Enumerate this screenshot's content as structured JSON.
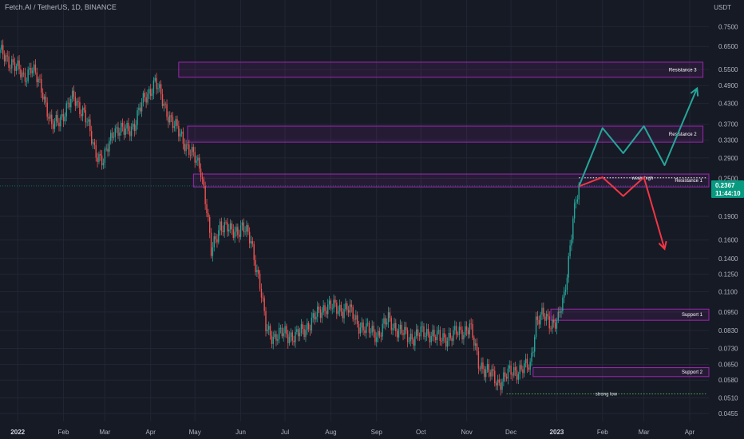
{
  "header": {
    "title": "Fetch.AI / TetherUS, 1D, BINANCE",
    "unit": "USDT"
  },
  "colors": {
    "background": "#161a25",
    "grid": "#222634",
    "up": "#26a69a",
    "down": "#ef5350",
    "zone": "#9c27b0",
    "bull_path": "#26a69a",
    "bear_path": "#f23645",
    "price_badge": "#089981"
  },
  "chart_data": {
    "type": "candlestick",
    "y_scale": "log",
    "ylim": [
      0.043,
      0.82
    ],
    "xlim": [
      "2021-12-20",
      "2023-04-14"
    ],
    "y_ticks": [
      "0.7500",
      "0.6500",
      "0.5500",
      "0.4900",
      "0.4300",
      "0.3700",
      "0.3300",
      "0.2900",
      "0.2500",
      "0.1900",
      "0.1600",
      "0.1400",
      "0.1250",
      "0.1100",
      "0.0950",
      "0.0830",
      "0.0730",
      "0.0650",
      "0.0580",
      "0.0510",
      "0.0455"
    ],
    "x_ticks": [
      {
        "date": "2022-01-01",
        "label": "2022",
        "year": true
      },
      {
        "date": "2022-02-01",
        "label": "Feb"
      },
      {
        "date": "2022-03-01",
        "label": "Mar"
      },
      {
        "date": "2022-04-01",
        "label": "Apr"
      },
      {
        "date": "2022-05-01",
        "label": "May"
      },
      {
        "date": "2022-06-01",
        "label": "Jun"
      },
      {
        "date": "2022-07-01",
        "label": "Jul"
      },
      {
        "date": "2022-08-01",
        "label": "Aug"
      },
      {
        "date": "2022-09-01",
        "label": "Sep"
      },
      {
        "date": "2022-10-01",
        "label": "Oct"
      },
      {
        "date": "2022-11-01",
        "label": "Nov"
      },
      {
        "date": "2022-12-01",
        "label": "Dec"
      },
      {
        "date": "2023-01-01",
        "label": "2023",
        "year": true
      },
      {
        "date": "2023-02-01",
        "label": "Feb"
      },
      {
        "date": "2023-03-01",
        "label": "Mar"
      },
      {
        "date": "2023-04-01",
        "label": "Apr"
      }
    ],
    "price_path": [
      [
        "2021-12-20",
        0.62
      ],
      [
        "2021-12-28",
        0.58
      ],
      [
        "2022-01-05",
        0.52
      ],
      [
        "2022-01-10",
        0.56
      ],
      [
        "2022-01-18",
        0.47
      ],
      [
        "2022-01-24",
        0.36
      ],
      [
        "2022-02-01",
        0.4
      ],
      [
        "2022-02-08",
        0.45
      ],
      [
        "2022-02-15",
        0.4
      ],
      [
        "2022-02-22",
        0.31
      ],
      [
        "2022-02-28",
        0.28
      ],
      [
        "2022-03-07",
        0.36
      ],
      [
        "2022-03-14",
        0.35
      ],
      [
        "2022-03-21",
        0.37
      ],
      [
        "2022-03-28",
        0.45
      ],
      [
        "2022-04-04",
        0.5
      ],
      [
        "2022-04-10",
        0.43
      ],
      [
        "2022-04-16",
        0.37
      ],
      [
        "2022-04-22",
        0.34
      ],
      [
        "2022-04-28",
        0.3
      ],
      [
        "2022-05-05",
        0.27
      ],
      [
        "2022-05-09",
        0.2
      ],
      [
        "2022-05-12",
        0.145
      ],
      [
        "2022-05-18",
        0.18
      ],
      [
        "2022-05-25",
        0.17
      ],
      [
        "2022-06-02",
        0.175
      ],
      [
        "2022-06-08",
        0.16
      ],
      [
        "2022-06-14",
        0.115
      ],
      [
        "2022-06-18",
        0.085
      ],
      [
        "2022-06-24",
        0.079
      ],
      [
        "2022-07-01",
        0.082
      ],
      [
        "2022-07-08",
        0.079
      ],
      [
        "2022-07-15",
        0.085
      ],
      [
        "2022-07-22",
        0.092
      ],
      [
        "2022-07-29",
        0.1
      ],
      [
        "2022-08-05",
        0.097
      ],
      [
        "2022-08-12",
        0.098
      ],
      [
        "2022-08-19",
        0.088
      ],
      [
        "2022-08-26",
        0.083
      ],
      [
        "2022-09-02",
        0.081
      ],
      [
        "2022-09-09",
        0.09
      ],
      [
        "2022-09-16",
        0.083
      ],
      [
        "2022-09-23",
        0.079
      ],
      [
        "2022-09-30",
        0.081
      ],
      [
        "2022-10-07",
        0.082
      ],
      [
        "2022-10-14",
        0.078
      ],
      [
        "2022-10-21",
        0.08
      ],
      [
        "2022-10-28",
        0.082
      ],
      [
        "2022-11-03",
        0.086
      ],
      [
        "2022-11-09",
        0.066
      ],
      [
        "2022-11-15",
        0.062
      ],
      [
        "2022-11-22",
        0.057
      ],
      [
        "2022-11-28",
        0.06
      ],
      [
        "2022-12-03",
        0.062
      ],
      [
        "2022-12-08",
        0.063
      ],
      [
        "2022-12-14",
        0.064
      ],
      [
        "2022-12-18",
        0.09
      ],
      [
        "2022-12-22",
        0.092
      ],
      [
        "2022-12-28",
        0.088
      ],
      [
        "2023-01-02",
        0.09
      ],
      [
        "2023-01-06",
        0.105
      ],
      [
        "2023-01-09",
        0.14
      ],
      [
        "2023-01-12",
        0.19
      ],
      [
        "2023-01-16",
        0.23
      ]
    ],
    "current_price": "0.2367",
    "countdown": "11:44:10",
    "zones": [
      {
        "label": "Resistance 3",
        "from": "2022-04-20",
        "to": "2023-04-10",
        "low": 0.52,
        "high": 0.58
      },
      {
        "label": "Resistance 2",
        "from": "2022-04-26",
        "to": "2023-04-10",
        "low": 0.325,
        "high": 0.365
      },
      {
        "label": "Resistance 1",
        "from": "2022-04-30",
        "to": "2023-04-14",
        "low": 0.235,
        "high": 0.258
      },
      {
        "label": "Support 1",
        "from": "2022-12-28",
        "to": "2023-04-14",
        "low": 0.0895,
        "high": 0.097
      },
      {
        "label": "Support 2",
        "from": "2022-12-16",
        "to": "2023-04-14",
        "low": 0.0595,
        "high": 0.0635
      }
    ],
    "lines": [
      {
        "label": "weak high",
        "from": "2023-01-16",
        "to": "2023-04-12",
        "y": 0.251,
        "color": "#ffffff"
      },
      {
        "label": "strong low",
        "from": "2022-11-28",
        "to": "2023-04-12",
        "y": 0.0525,
        "color": "#4caf50"
      }
    ],
    "bull_path": [
      [
        "2023-01-16",
        0.236
      ],
      [
        "2023-02-01",
        0.36
      ],
      [
        "2023-02-15",
        0.3
      ],
      [
        "2023-03-01",
        0.365
      ],
      [
        "2023-03-15",
        0.275
      ],
      [
        "2023-04-06",
        0.48
      ]
    ],
    "bear_path": [
      [
        "2023-01-16",
        0.236
      ],
      [
        "2023-02-01",
        0.252
      ],
      [
        "2023-02-15",
        0.22
      ],
      [
        "2023-03-01",
        0.252
      ],
      [
        "2023-03-15",
        0.15
      ]
    ]
  }
}
